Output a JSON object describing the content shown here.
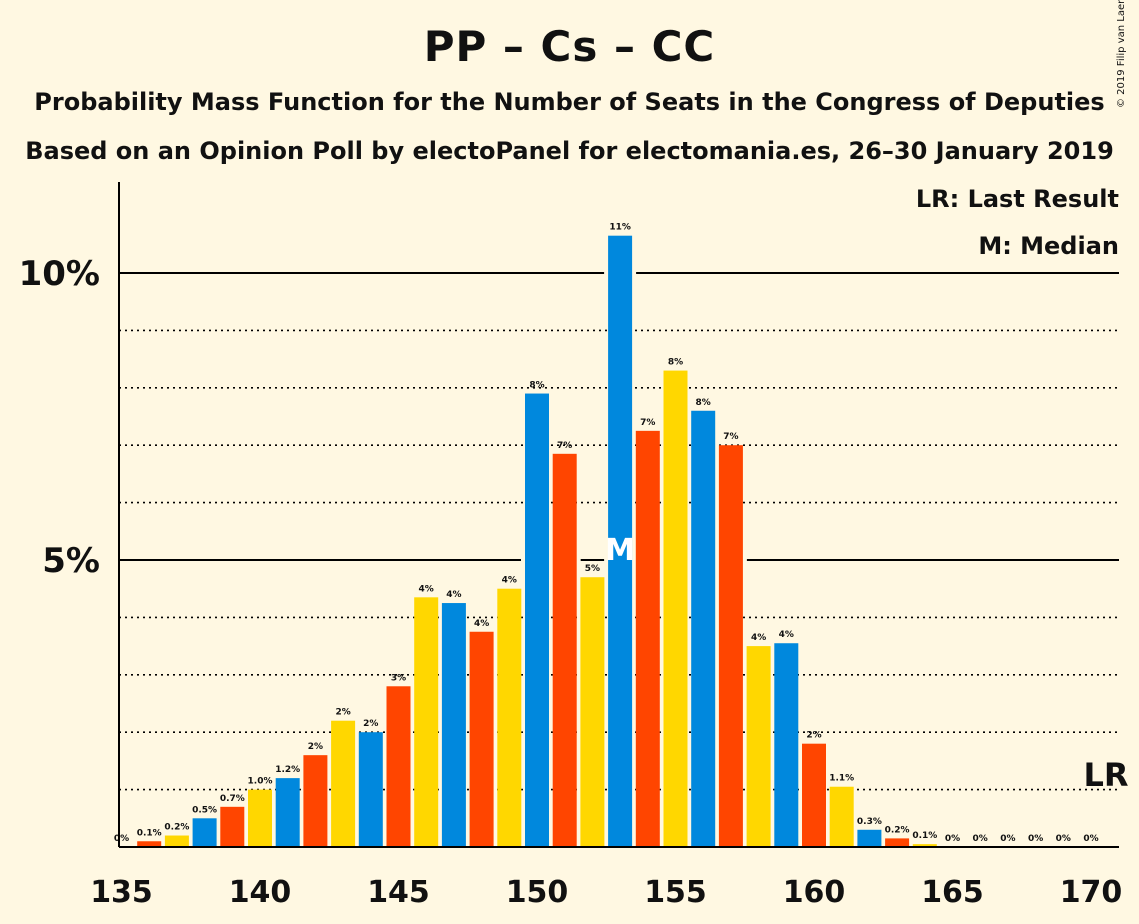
{
  "title": "PP – Cs – CC",
  "subtitle_1": "Probability Mass Function for the Number of Seats in the Congress of Deputies",
  "subtitle_2": "Based on an Opinion Poll by electoPanel for electomania.es, 26–30 January 2019",
  "copyright": "© 2019 Filip van Laenen",
  "legend": {
    "last_result": "LR: Last Result",
    "median": "M: Median"
  },
  "markers": {
    "median_label": "M",
    "median_seats": 153,
    "last_result_label": "LR",
    "last_result_seats": 170
  },
  "colors": {
    "background": "#FFF8E2",
    "blue": "#0088DD",
    "orange": "#FF4500",
    "yellow": "#FFD700"
  },
  "chart_data": {
    "type": "bar",
    "x": [
      135,
      136,
      137,
      138,
      139,
      140,
      141,
      142,
      143,
      144,
      145,
      146,
      147,
      148,
      149,
      150,
      151,
      152,
      153,
      154,
      155,
      156,
      157,
      158,
      159,
      160,
      161,
      162,
      163,
      164,
      165,
      166,
      167,
      168,
      169,
      170
    ],
    "values": [
      0,
      0.1,
      0.2,
      0.5,
      0.7,
      1.0,
      1.2,
      1.6,
      2.2,
      2.0,
      2.8,
      4.35,
      4.25,
      3.75,
      4.5,
      7.9,
      6.85,
      4.7,
      10.65,
      7.25,
      8.3,
      7.6,
      7.0,
      3.5,
      3.55,
      1.8,
      1.05,
      0.3,
      0.15,
      0.05,
      0,
      0,
      0,
      0,
      0,
      0
    ],
    "data_labels": [
      "0%",
      "0.1%",
      "0.2%",
      "0.5%",
      "0.7%",
      "1.0%",
      "1.2%",
      "2%",
      "2%",
      "2%",
      "3%",
      "4%",
      "4%",
      "4%",
      "4%",
      "8%",
      "7%",
      "5%",
      "11%",
      "7%",
      "8%",
      "8%",
      "7%",
      "4%",
      "4%",
      "2%",
      "1.1%",
      "0.3%",
      "0.2%",
      "0.1%",
      "0%",
      "0%",
      "0%",
      "0%",
      "0%",
      "0%"
    ],
    "bar_colors": [
      "blue",
      "orange",
      "yellow",
      "blue",
      "orange",
      "yellow",
      "blue",
      "orange",
      "yellow",
      "blue",
      "orange",
      "yellow",
      "blue",
      "orange",
      "yellow",
      "blue",
      "orange",
      "yellow",
      "blue",
      "orange",
      "yellow",
      "blue",
      "orange",
      "yellow",
      "blue",
      "orange",
      "yellow",
      "blue",
      "orange",
      "yellow",
      "blue",
      "orange",
      "yellow",
      "blue",
      "orange",
      "yellow"
    ],
    "x_ticks": [
      "135",
      "140",
      "145",
      "150",
      "155",
      "160",
      "165",
      "170"
    ],
    "x_tick_values": [
      135,
      140,
      145,
      150,
      155,
      160,
      165,
      170
    ],
    "y_ticks": [
      "5%",
      "10%"
    ],
    "y_tick_values": [
      5,
      10
    ],
    "ylim": [
      0,
      11.5
    ],
    "xlim": [
      134.5,
      170.5
    ],
    "minor_gridlines": [
      1,
      2,
      3,
      4,
      6,
      7,
      8,
      9
    ],
    "major_gridlines": [
      5,
      10
    ],
    "unit": "%"
  }
}
